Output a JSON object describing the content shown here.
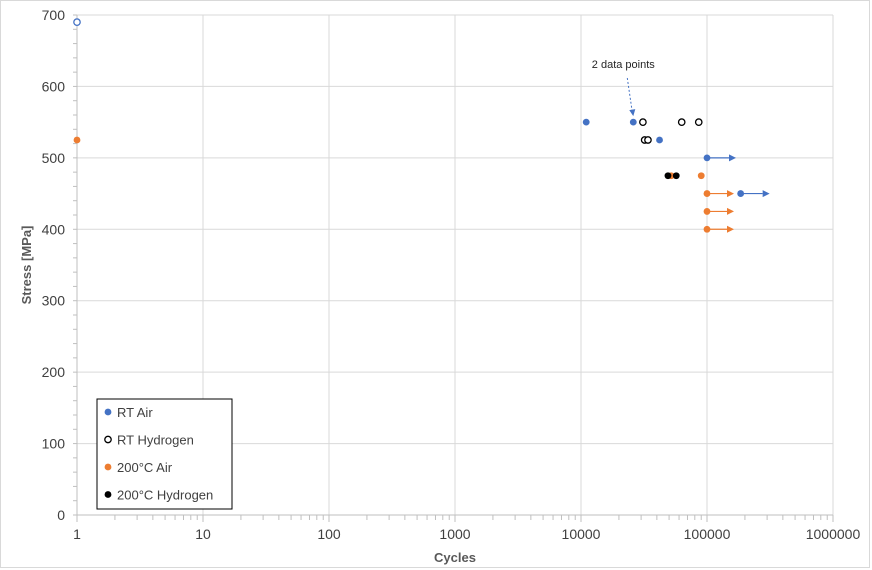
{
  "chart_data": {
    "type": "scatter",
    "title": "",
    "xlabel": "Cycles",
    "ylabel": "Stress [MPa]",
    "x_scale": "log",
    "xlim": [
      1,
      1000000
    ],
    "ylim": [
      0,
      700
    ],
    "x_ticks": [
      1,
      10,
      100,
      1000,
      10000,
      100000,
      1000000
    ],
    "x_tick_labels": [
      "1",
      "10",
      "100",
      "1000",
      "10000",
      "100000",
      "1000000"
    ],
    "y_ticks": [
      0,
      100,
      200,
      300,
      400,
      500,
      600,
      700
    ],
    "y_tick_labels": [
      "0",
      "100",
      "200",
      "300",
      "400",
      "500",
      "600",
      "700"
    ],
    "grid": true,
    "legend_position": "bottom-left",
    "series": [
      {
        "name": "RT Air",
        "color": "#4472c4",
        "marker": "filled-circle",
        "points": [
          {
            "x": 11000,
            "y": 550
          },
          {
            "x": 26000,
            "y": 550
          },
          {
            "x": 42000,
            "y": 525
          },
          {
            "x": 100000,
            "y": 500,
            "runout": true
          },
          {
            "x": 185000,
            "y": 450,
            "runout": true
          }
        ]
      },
      {
        "name": "RT Hydrogen",
        "color": "#000000",
        "marker": "open-circle",
        "points": [
          {
            "x": 31000,
            "y": 550
          },
          {
            "x": 63000,
            "y": 550
          },
          {
            "x": 86000,
            "y": 550
          },
          {
            "x": 32000,
            "y": 525
          },
          {
            "x": 34000,
            "y": 525
          }
        ]
      },
      {
        "name": "200°C Air",
        "color": "#ed7d31",
        "marker": "filled-circle",
        "points": [
          {
            "x": 1,
            "y": 525
          },
          {
            "x": 52000,
            "y": 475
          },
          {
            "x": 90000,
            "y": 475
          },
          {
            "x": 100000,
            "y": 450,
            "runout": true
          },
          {
            "x": 100000,
            "y": 425,
            "runout": true
          },
          {
            "x": 100000,
            "y": 400,
            "runout": true
          }
        ]
      },
      {
        "name": "200°C Hydrogen",
        "color": "#000000",
        "marker": "filled-circle",
        "points": [
          {
            "x": 49000,
            "y": 475
          },
          {
            "x": 57000,
            "y": 475
          }
        ]
      }
    ],
    "extra_markers": [
      {
        "x": 1,
        "y": 690,
        "color": "#4472c4",
        "marker": "open-circle"
      }
    ],
    "annotations": [
      {
        "text": "2 data points",
        "x": 26000,
        "y": 550
      }
    ]
  }
}
